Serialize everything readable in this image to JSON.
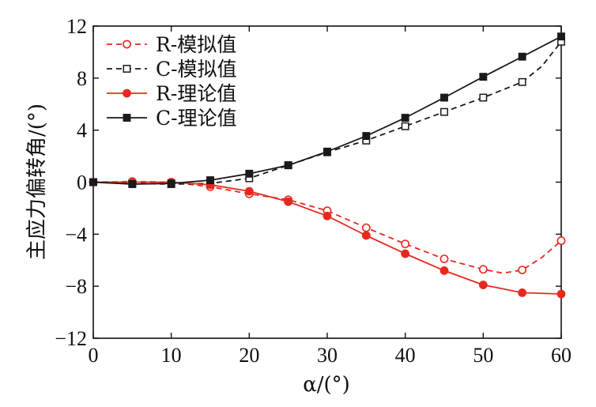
{
  "chart_data": {
    "type": "line",
    "xlabel": "α/(°)",
    "ylabel": "主应力偏转角/(°)",
    "xlim": [
      0,
      60
    ],
    "ylim": [
      -12,
      12
    ],
    "x_ticks": [
      "0",
      "10",
      "20",
      "30",
      "40",
      "50",
      "60"
    ],
    "y_ticks": [
      "−12",
      "−8",
      "−4",
      "0",
      "4",
      "8",
      "12"
    ],
    "grid": false,
    "legend_position": "top-left",
    "x": [
      0,
      5,
      10,
      15,
      20,
      25,
      30,
      35,
      40,
      45,
      50,
      55,
      60
    ],
    "series": [
      {
        "name": "R-模拟值",
        "color": "#e8281e",
        "line": "dashed",
        "marker": "open-circle",
        "values": [
          0,
          0.05,
          0,
          -0.35,
          -0.9,
          -1.35,
          -2.2,
          -3.5,
          -4.75,
          -5.9,
          -6.7,
          -6.75,
          -4.5
        ],
        "curve": [
          [
            0,
            0
          ],
          [
            5,
            0.05
          ],
          [
            10,
            0
          ],
          [
            15,
            -0.35
          ],
          [
            20,
            -0.9
          ],
          [
            25,
            -1.35
          ],
          [
            30,
            -2.2
          ],
          [
            35,
            -3.5
          ],
          [
            40,
            -4.75
          ],
          [
            45,
            -5.9
          ],
          [
            50,
            -6.7
          ],
          [
            52.5,
            -7.0
          ],
          [
            55,
            -6.75
          ],
          [
            57.5,
            -5.8
          ],
          [
            60,
            -4.5
          ]
        ]
      },
      {
        "name": "C-模拟值",
        "color": "#1a1a1a",
        "line": "dashed",
        "marker": "open-square",
        "values": [
          0,
          -0.1,
          -0.15,
          -0.1,
          0.3,
          1.3,
          2.3,
          3.2,
          4.3,
          5.4,
          6.5,
          7.7,
          10.8
        ],
        "curve": [
          [
            0,
            0
          ],
          [
            5,
            -0.1
          ],
          [
            10,
            -0.15
          ],
          [
            15,
            -0.1
          ],
          [
            20,
            0.3
          ],
          [
            25,
            1.3
          ],
          [
            30,
            2.3
          ],
          [
            35,
            3.2
          ],
          [
            40,
            4.3
          ],
          [
            45,
            5.4
          ],
          [
            50,
            6.5
          ],
          [
            55,
            7.7
          ],
          [
            57.5,
            8.9
          ],
          [
            60,
            10.8
          ]
        ]
      },
      {
        "name": "R-理论值",
        "color": "#e8281e",
        "line": "solid",
        "marker": "filled-circle",
        "values": [
          0,
          0,
          0,
          -0.2,
          -0.7,
          -1.5,
          -2.6,
          -4.1,
          -5.5,
          -6.8,
          -7.9,
          -8.5,
          -8.6
        ],
        "curve": [
          [
            0,
            0
          ],
          [
            5,
            0
          ],
          [
            10,
            0
          ],
          [
            15,
            -0.2
          ],
          [
            20,
            -0.7
          ],
          [
            25,
            -1.5
          ],
          [
            30,
            -2.6
          ],
          [
            35,
            -4.1
          ],
          [
            40,
            -5.5
          ],
          [
            45,
            -6.8
          ],
          [
            50,
            -7.9
          ],
          [
            55,
            -8.5
          ],
          [
            60,
            -8.6
          ]
        ]
      },
      {
        "name": "C-理论值",
        "color": "#1a1a1a",
        "line": "solid",
        "marker": "filled-square",
        "values": [
          0,
          -0.15,
          -0.1,
          0.15,
          0.65,
          1.3,
          2.35,
          3.55,
          4.95,
          6.5,
          8.1,
          9.65,
          11.2
        ],
        "curve": [
          [
            0,
            0
          ],
          [
            5,
            -0.15
          ],
          [
            10,
            -0.1
          ],
          [
            15,
            0.15
          ],
          [
            20,
            0.65
          ],
          [
            25,
            1.3
          ],
          [
            30,
            2.35
          ],
          [
            35,
            3.55
          ],
          [
            40,
            4.95
          ],
          [
            45,
            6.5
          ],
          [
            50,
            8.1
          ],
          [
            55,
            9.65
          ],
          [
            60,
            11.2
          ]
        ]
      }
    ]
  }
}
